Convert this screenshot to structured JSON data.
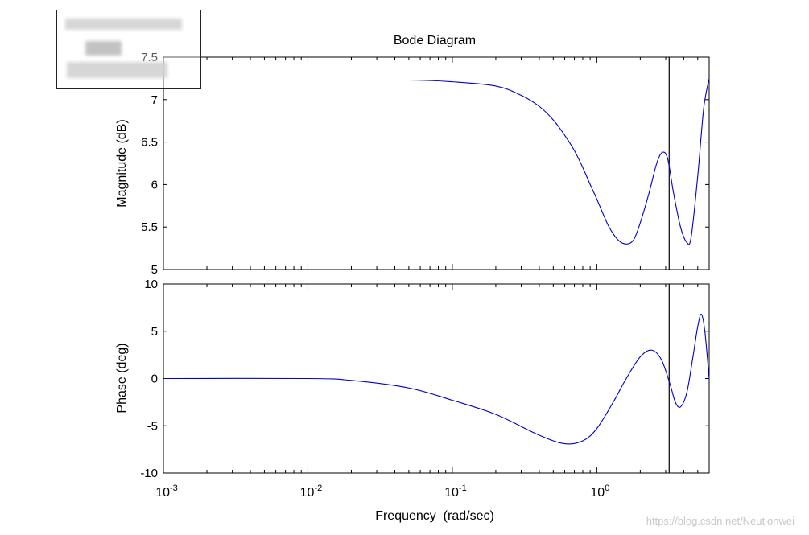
{
  "chart_data": {
    "type": "line",
    "title": "Bode Diagram",
    "xlabel": "Frequency  (rad/sec)",
    "x_scale": "log",
    "xlim": [
      0.001,
      6.0
    ],
    "x_ticks": [
      0.001,
      0.01,
      0.1,
      1
    ],
    "x_tick_labels": [
      {
        "base": "10",
        "exp": "-3"
      },
      {
        "base": "10",
        "exp": "-2"
      },
      {
        "base": "10",
        "exp": "-1"
      },
      {
        "base": "10",
        "exp": "0"
      }
    ],
    "vertical_marker_x": 3.17,
    "line_color": "#0000cc",
    "panels": [
      {
        "name": "magnitude",
        "ylabel": "Magnitude (dB)",
        "ylim": [
          5,
          7.5
        ],
        "y_ticks": [
          5,
          5.5,
          6,
          6.5,
          7,
          7.5
        ],
        "y_tick_labels": [
          "5",
          "5.5",
          "6",
          "6.5",
          "7",
          "7.5"
        ],
        "points": [
          [
            0.001,
            7.23
          ],
          [
            0.01,
            7.23
          ],
          [
            0.05,
            7.23
          ],
          [
            0.1,
            7.21
          ],
          [
            0.2,
            7.16
          ],
          [
            0.3,
            7.05
          ],
          [
            0.4,
            6.92
          ],
          [
            0.5,
            6.76
          ],
          [
            0.6,
            6.58
          ],
          [
            0.7,
            6.4
          ],
          [
            0.8,
            6.2
          ],
          [
            0.9,
            6.0
          ],
          [
            1.0,
            5.83
          ],
          [
            1.2,
            5.52
          ],
          [
            1.4,
            5.35
          ],
          [
            1.6,
            5.3
          ],
          [
            1.8,
            5.35
          ],
          [
            2.0,
            5.55
          ],
          [
            2.3,
            5.9
          ],
          [
            2.6,
            6.25
          ],
          [
            2.85,
            6.38
          ],
          [
            3.1,
            6.3
          ],
          [
            3.4,
            5.9
          ],
          [
            3.8,
            5.5
          ],
          [
            4.2,
            5.32
          ],
          [
            4.5,
            5.38
          ],
          [
            5.0,
            6.1
          ],
          [
            5.5,
            6.9
          ],
          [
            6.0,
            7.25
          ]
        ]
      },
      {
        "name": "phase",
        "ylabel": "Phase (deg)",
        "ylim": [
          -10,
          10
        ],
        "y_ticks": [
          -10,
          -5,
          0,
          5,
          10
        ],
        "y_tick_labels": [
          "-10",
          "-5",
          "0",
          "5",
          "10"
        ],
        "points": [
          [
            0.001,
            0.0
          ],
          [
            0.01,
            0.0
          ],
          [
            0.02,
            -0.2
          ],
          [
            0.05,
            -1.0
          ],
          [
            0.1,
            -2.3
          ],
          [
            0.2,
            -3.8
          ],
          [
            0.4,
            -6.0
          ],
          [
            0.6,
            -6.9
          ],
          [
            0.8,
            -6.6
          ],
          [
            1.0,
            -5.3
          ],
          [
            1.3,
            -2.5
          ],
          [
            1.6,
            0.0
          ],
          [
            2.0,
            2.3
          ],
          [
            2.4,
            3.0
          ],
          [
            2.8,
            2.0
          ],
          [
            3.2,
            -0.5
          ],
          [
            3.5,
            -2.5
          ],
          [
            3.8,
            -3.0
          ],
          [
            4.2,
            -1.5
          ],
          [
            4.6,
            2.0
          ],
          [
            5.0,
            5.5
          ],
          [
            5.3,
            6.8
          ],
          [
            5.6,
            5.0
          ],
          [
            6.0,
            0.0
          ]
        ]
      }
    ]
  },
  "watermark": "https://blog.csdn.net/Neutionwei"
}
